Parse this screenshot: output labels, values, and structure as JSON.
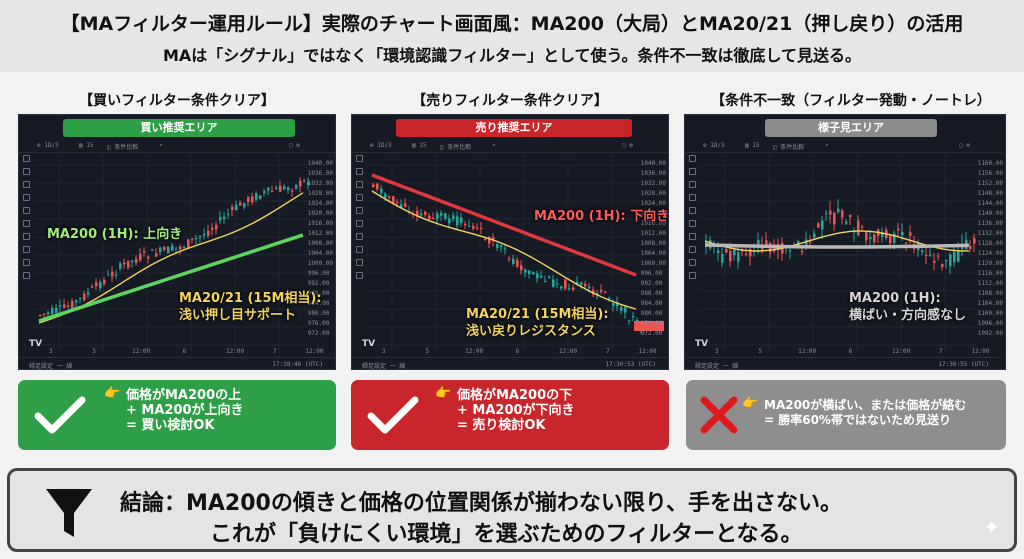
{
  "header": {
    "title": "【MAフィルター運用ルール】実際のチャート画面風：MA200（大局）とMA20/21（押し戻り）の活用",
    "subtitle": "MAは「シグナル」ではなく「環境認識フィルター」として使う。条件不一致は徹底して見送る。"
  },
  "panels": [
    {
      "title": "【買いフィルター条件クリア】",
      "banner": "買い推奨エリア",
      "banner_color": "#2e9e47",
      "annotation_ma200": "MA200 (1H): 上向き",
      "annotation_ma20_1": "MA20/21 (15M相当):",
      "annotation_ma20_2": "浅い押し目サポート",
      "status_lines": [
        "価格がMA200の上",
        "+ MA200が上向き",
        "= 買い検討OK"
      ],
      "status_color": "#2e9e47",
      "status_icon": "check-icon"
    },
    {
      "title": "【売りフィルター条件クリア】",
      "banner": "売り推奨エリア",
      "banner_color": "#c8262b",
      "annotation_ma200": "MA200 (1H): 下向き",
      "annotation_ma20_1": "MA20/21 (15M相当):",
      "annotation_ma20_2": "浅い戻りレジスタンス",
      "status_lines": [
        "価格がMA200の下",
        "+ MA200が下向き",
        "= 売り検討OK"
      ],
      "status_color": "#c8262b",
      "status_icon": "check-icon"
    },
    {
      "title": "【条件不一致（フィルター発動・ノートレ）",
      "banner": "様子見エリア",
      "banner_color": "#8b8b8b",
      "annotation_ma200_1": "MA200 (1H):",
      "annotation_ma200_2": "横ばい・方向感なし",
      "status_lines": [
        "MA200が横ばい、または価格が絡む",
        "= 勝率60%帯ではないため見送り"
      ],
      "status_color": "#8e8e8e",
      "status_icon": "cross-icon"
    }
  ],
  "conclusion": {
    "line1": "結論：MA200の傾きと価格の位置関係が揃わない限り、手を出さない。",
    "line2": "これが「負けにくい環境」を選ぶためのフィルターとなる。"
  }
}
